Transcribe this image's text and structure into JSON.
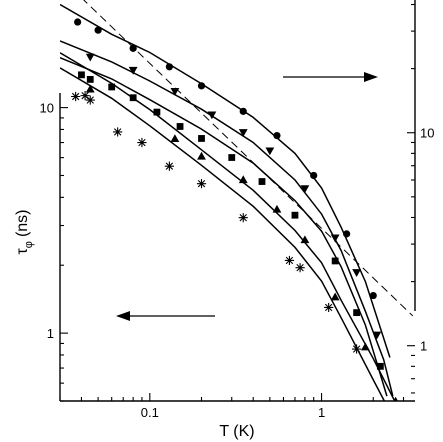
{
  "chart_data": {
    "type": "scatter",
    "title": "",
    "xlabel": "T (K)",
    "ylabel_left": "τ_φ (ns)",
    "ylabel_left_main": "τ",
    "ylabel_left_sub": "φ",
    "ylabel_left_unit": "(ns)",
    "ylabel_right": "",
    "x_scale": "log",
    "x_range": [
      0.03,
      3.5
    ],
    "y_left_scale": "log",
    "y_left_range": [
      0.5,
      30
    ],
    "y_right_scale": "log",
    "y_right_range": [
      0.55,
      42
    ],
    "x_ticks": [
      {
        "value": 0.1,
        "label": "0.1"
      },
      {
        "value": 1,
        "label": "1"
      }
    ],
    "y_left_ticks": [
      {
        "value": 1,
        "label": "1"
      },
      {
        "value": 10,
        "label": "10"
      }
    ],
    "y_right_ticks": [
      {
        "value": 1,
        "label": "1"
      },
      {
        "value": 10,
        "label": "10"
      }
    ],
    "grid": false,
    "legend": "none",
    "arrows": [
      {
        "direction": "right",
        "indicates_axis": "right"
      },
      {
        "direction": "left",
        "indicates_axis": "left"
      }
    ],
    "series": [
      {
        "axis": "right",
        "marker": "circle",
        "points": [
          [
            0.038,
            33.1
          ],
          [
            0.05,
            30.3
          ],
          [
            0.08,
            24.9
          ],
          [
            0.13,
            20.4
          ],
          [
            0.2,
            16.6
          ],
          [
            0.35,
            12.6
          ],
          [
            0.55,
            9.7
          ],
          [
            0.9,
            6.3
          ],
          [
            1.4,
            3.35
          ],
          [
            2.0,
            1.72
          ]
        ],
        "fit": [
          [
            0.03,
            40.0
          ],
          [
            0.06,
            29.0
          ],
          [
            0.1,
            23.8
          ],
          [
            0.2,
            17.0
          ],
          [
            0.4,
            11.8
          ],
          [
            0.7,
            8.0
          ],
          [
            1.0,
            5.5
          ],
          [
            1.3,
            3.6
          ],
          [
            1.8,
            2.0
          ],
          [
            2.5,
            0.88
          ]
        ]
      },
      {
        "axis": "right",
        "marker": "triangle-down",
        "points": [
          [
            0.045,
            22.6
          ],
          [
            0.08,
            19.6
          ],
          [
            0.14,
            15.6
          ],
          [
            0.23,
            12.1
          ],
          [
            0.35,
            10.0
          ],
          [
            0.5,
            8.2
          ],
          [
            0.8,
            5.45
          ],
          [
            1.2,
            3.2
          ],
          [
            1.6,
            2.2
          ],
          [
            2.1,
            1.12
          ]
        ],
        "fit": [
          [
            0.03,
            27.0
          ],
          [
            0.06,
            21.5
          ],
          [
            0.1,
            17.5
          ],
          [
            0.2,
            12.9
          ],
          [
            0.4,
            9.0
          ],
          [
            0.7,
            6.0
          ],
          [
            1.0,
            4.15
          ],
          [
            1.3,
            2.8
          ],
          [
            1.8,
            1.45
          ],
          [
            2.3,
            0.86
          ],
          [
            2.6,
            0.58
          ]
        ]
      },
      {
        "axis": "right",
        "marker": "square",
        "points": [
          [
            0.04,
            18.7
          ],
          [
            0.045,
            17.8
          ],
          [
            0.06,
            16.4
          ],
          [
            0.08,
            14.6
          ],
          [
            0.11,
            12.5
          ],
          [
            0.15,
            10.7
          ],
          [
            0.2,
            9.4
          ],
          [
            0.3,
            7.65
          ],
          [
            0.45,
            5.9
          ],
          [
            0.7,
            4.1
          ],
          [
            1.2,
            2.5
          ],
          [
            1.6,
            1.43
          ],
          [
            2.2,
            0.8
          ]
        ],
        "fit": [
          [
            0.03,
            22.5
          ],
          [
            0.06,
            17.9
          ],
          [
            0.1,
            14.3
          ],
          [
            0.2,
            10.4
          ],
          [
            0.4,
            7.2
          ],
          [
            0.7,
            4.8
          ],
          [
            1.0,
            3.45
          ],
          [
            1.3,
            2.35
          ],
          [
            1.8,
            1.25
          ],
          [
            2.4,
            0.58
          ]
        ]
      },
      {
        "axis": "left",
        "marker": "triangle-up",
        "points": [
          [
            0.045,
            12.1
          ],
          [
            0.14,
            7.3
          ],
          [
            0.2,
            6.1
          ],
          [
            0.35,
            4.8
          ],
          [
            0.55,
            3.55
          ],
          [
            0.8,
            2.6
          ],
          [
            1.2,
            1.45
          ],
          [
            1.8,
            0.87
          ],
          [
            2.7,
            0.5
          ]
        ],
        "fit": [
          [
            0.03,
            17.5
          ],
          [
            0.06,
            12.8
          ],
          [
            0.1,
            9.8
          ],
          [
            0.2,
            6.5
          ],
          [
            0.4,
            4.3
          ],
          [
            0.7,
            2.85
          ],
          [
            1.0,
            2.05
          ],
          [
            1.3,
            1.4
          ],
          [
            2.0,
            0.77
          ],
          [
            2.9,
            0.44
          ]
        ]
      },
      {
        "axis": "left",
        "marker": "asterisk",
        "points": [
          [
            0.037,
            11.2
          ],
          [
            0.042,
            11.3
          ],
          [
            0.045,
            10.8
          ],
          [
            0.065,
            7.8
          ],
          [
            0.09,
            7.0
          ],
          [
            0.13,
            5.5
          ],
          [
            0.2,
            4.6
          ],
          [
            0.35,
            3.25
          ],
          [
            0.65,
            2.1
          ],
          [
            0.75,
            1.95
          ],
          [
            1.1,
            1.3
          ],
          [
            1.6,
            0.85
          ]
        ],
        "fit": [
          [
            0.03,
            15.0
          ],
          [
            0.06,
            11.0
          ],
          [
            0.1,
            8.3
          ],
          [
            0.2,
            5.55
          ],
          [
            0.4,
            3.65
          ],
          [
            0.7,
            2.4
          ],
          [
            1.0,
            1.7
          ],
          [
            1.3,
            1.17
          ],
          [
            2.0,
            0.62
          ],
          [
            2.8,
            0.38
          ]
        ]
      }
    ],
    "reference_line": {
      "axis": "right",
      "style": "dashed",
      "points": [
        [
          0.04,
          43.0
        ],
        [
          3.4,
          1.38
        ]
      ]
    }
  }
}
